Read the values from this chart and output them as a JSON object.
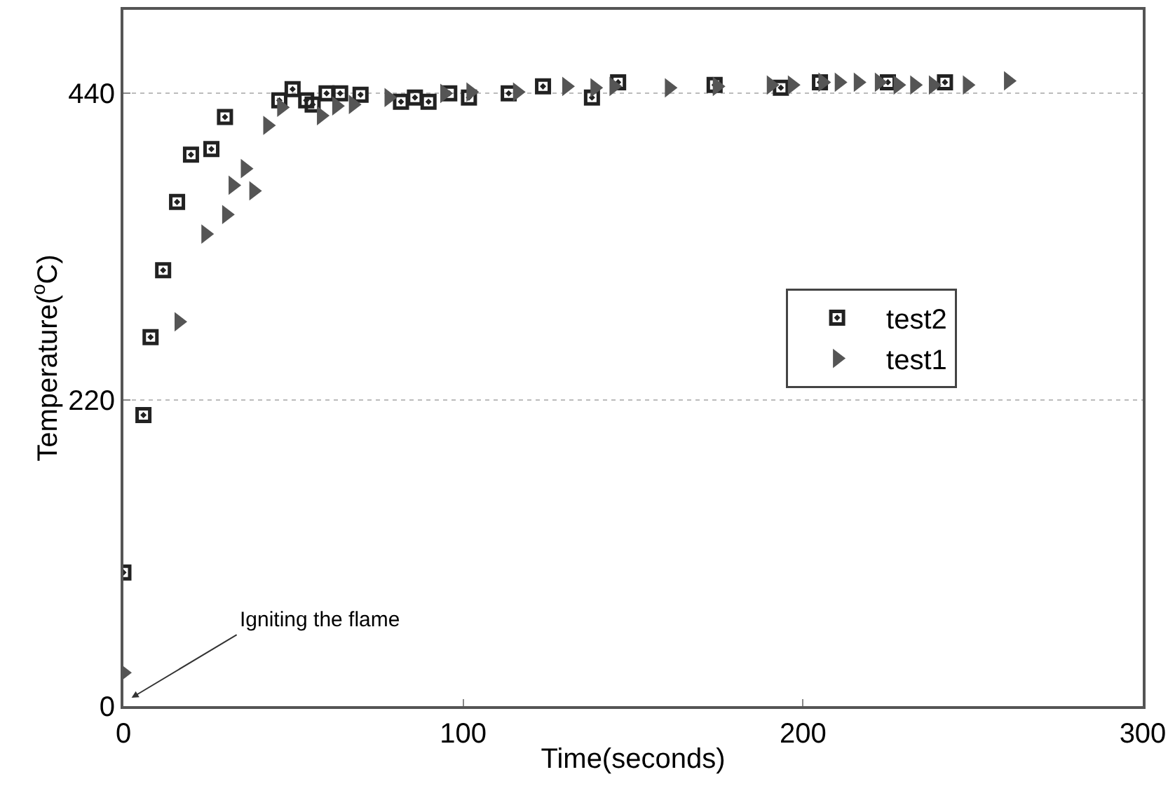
{
  "chart_data": {
    "type": "scatter",
    "xlabel": "Time(seconds)",
    "ylabel": "Temperature($^{o}$C)",
    "xlim": [
      0,
      300
    ],
    "xticks": [
      0,
      100,
      200,
      300
    ],
    "ylim": [
      0,
      500
    ],
    "yticks": [
      0,
      220,
      440
    ],
    "grid": "y",
    "legend": "right",
    "annotations": [
      "Igniting the flame"
    ],
    "series": [
      {
        "name": "test2",
        "color": "#222222",
        "marker": "square",
        "x": [
          0,
          5.9,
          8.0,
          11.7,
          15.8,
          19.9,
          25.9,
          29.9,
          45.9,
          49.8,
          53.8,
          55.7,
          59.8,
          63.8,
          69.8,
          81.7,
          85.8,
          89.8,
          95.9,
          101.7,
          113.4,
          123.5,
          137.9,
          145.6,
          174,
          193.5,
          205,
          225,
          241.8
        ],
        "values": [
          96,
          209,
          265,
          313,
          362,
          396,
          400,
          423,
          435,
          443,
          435,
          432,
          440,
          440,
          439,
          434,
          437,
          434,
          440,
          437,
          440,
          445,
          437,
          448,
          446,
          444,
          448,
          448,
          448
        ]
      },
      {
        "name": "test1",
        "color": "#555555",
        "marker": "triangle",
        "x": [
          0,
          16.3,
          24.2,
          30.3,
          32.2,
          35.8,
          38.3,
          42.4,
          46.5,
          58.2,
          62.7,
          67.6,
          78.1,
          94.5,
          102.2,
          115.9,
          130.4,
          138.7,
          144.3,
          160.6,
          174.7,
          190.6,
          196.8,
          205.8,
          210.6,
          216.2,
          222.4,
          227.9,
          232.8,
          238.3,
          248.3,
          260.4
        ],
        "values": [
          24,
          276,
          339,
          353,
          374,
          386,
          370,
          417,
          430,
          424,
          431,
          432,
          437,
          440,
          441,
          441,
          445,
          444,
          445,
          444,
          445,
          446,
          446,
          448,
          448,
          448,
          448,
          446,
          446,
          446,
          446,
          449
        ]
      }
    ]
  }
}
